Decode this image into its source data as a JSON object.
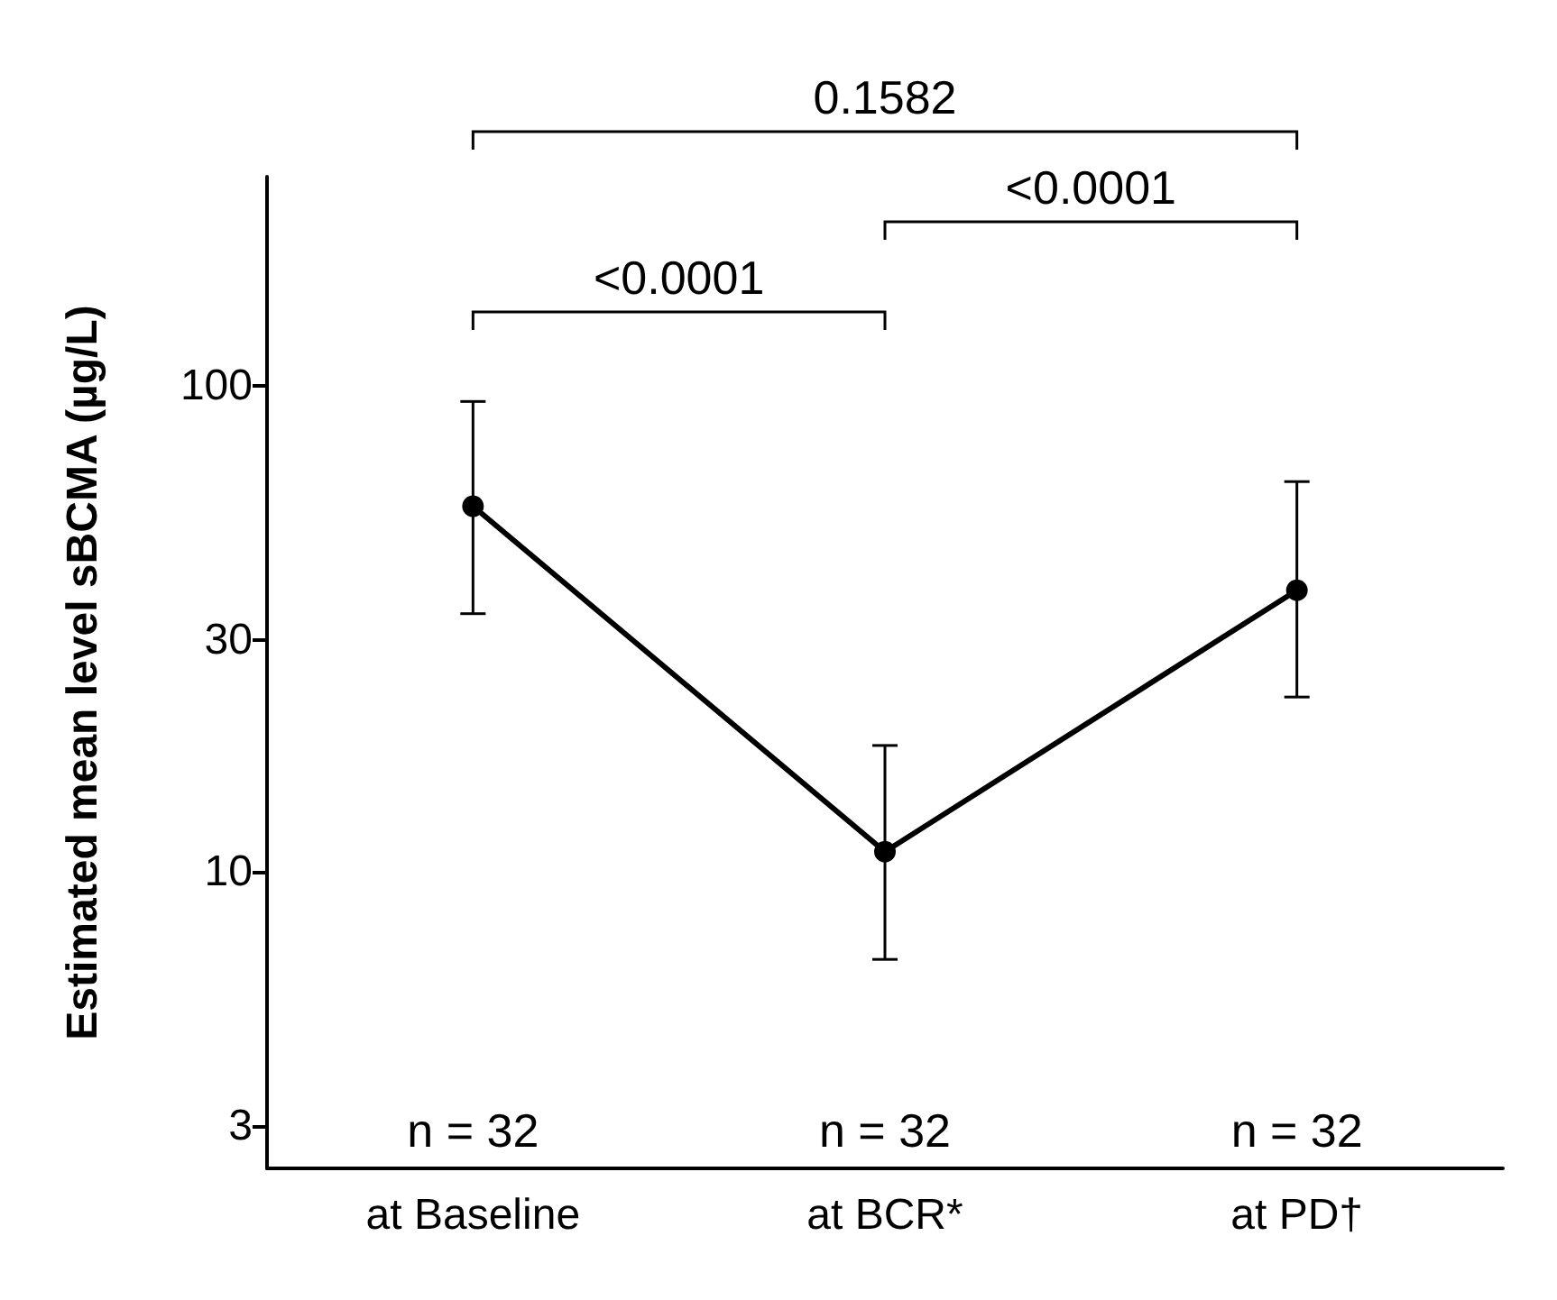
{
  "chart_data": {
    "type": "line",
    "ylabel": "Estimated mean level sBCMA (µg/L)",
    "categories": [
      "at Baseline",
      "at BCR*",
      "at PD†"
    ],
    "series": [
      {
        "color": "#000000",
        "values": [
          56.6,
          11,
          38
        ],
        "errors": [
          [
            34,
            93
          ],
          [
            6.6,
            18.2
          ],
          [
            22.9,
            63.6
          ]
        ]
      }
    ],
    "log": "y",
    "ylim": [
      2.45,
      270
    ],
    "yticks": [
      3,
      10,
      30,
      100
    ],
    "marker": "circle",
    "line_style": "solid",
    "grid": false,
    "annotations": [
      "n = 32",
      "n = 32",
      "n = 32",
      "<0.0001",
      "<0.0001",
      "0.1582"
    ]
  }
}
